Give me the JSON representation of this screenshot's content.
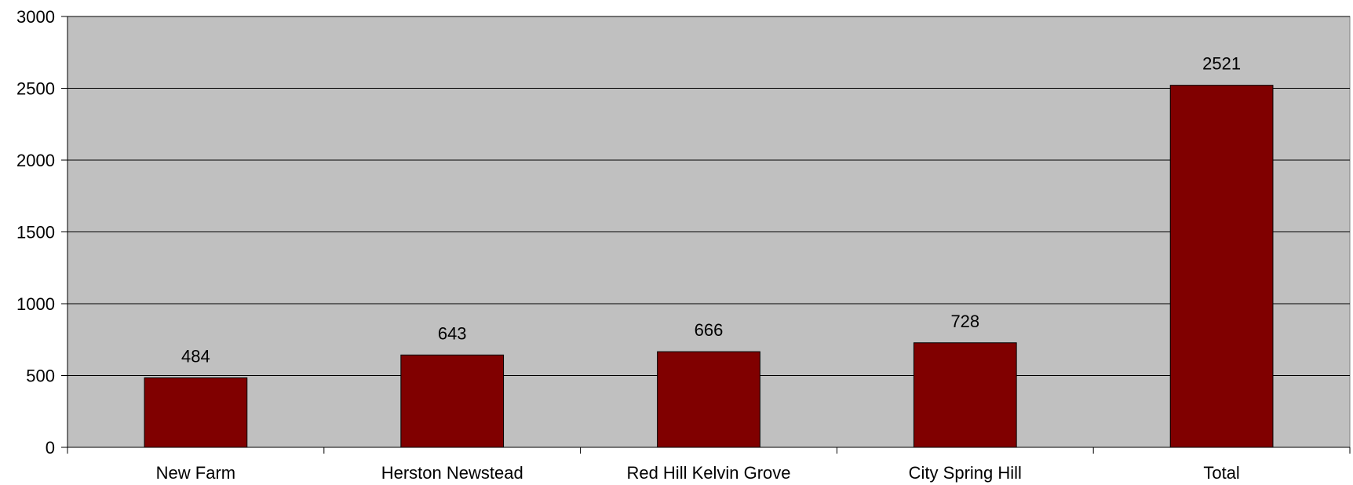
{
  "chart_data": {
    "type": "bar",
    "categories": [
      "New Farm",
      "Herston Newstead",
      "Red Hill Kelvin Grove",
      "City Spring Hill",
      "Total"
    ],
    "values": [
      484,
      643,
      666,
      728,
      2521
    ],
    "title": "",
    "xlabel": "",
    "ylabel": "",
    "ylim": [
      0,
      3000
    ],
    "yticks": [
      0,
      500,
      1000,
      1500,
      2000,
      2500,
      3000
    ],
    "grid": true,
    "legend": "none",
    "colors": {
      "bar": "#800000",
      "plot_background": "#c0c0c0",
      "gridline": "#000000"
    }
  }
}
